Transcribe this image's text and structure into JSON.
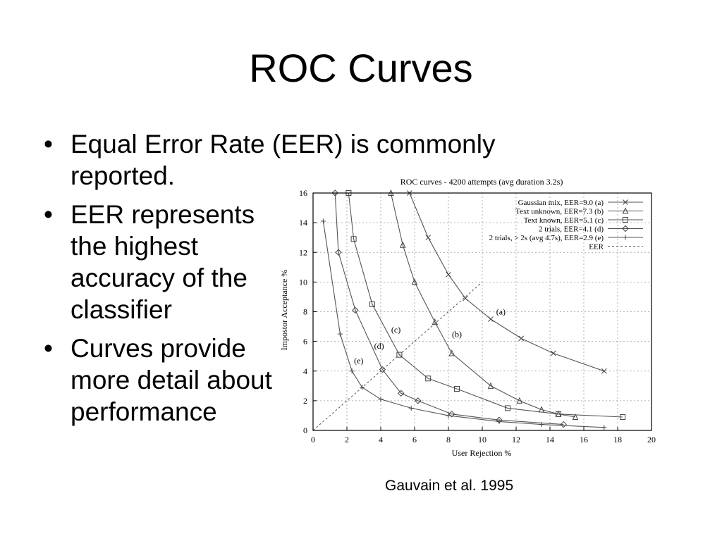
{
  "slide": {
    "title": "ROC Curves",
    "bullets": [
      "Equal Error Rate (EER) is commonly reported.",
      "EER represents the highest accuracy of the classifier",
      "Curves provide more detail about performance"
    ],
    "caption": "Gauvain et al. 1995"
  },
  "chart_data": {
    "type": "line",
    "title": "ROC curves - 4200 attempts (avg duration 3.2s)",
    "xlabel": "User Rejection %",
    "ylabel": "Impostor Acceptance %",
    "xlim": [
      0,
      20
    ],
    "ylim": [
      0,
      16
    ],
    "xticks": [
      "0",
      "2",
      "4",
      "6",
      "8",
      "10",
      "12",
      "14",
      "16",
      "18",
      "20"
    ],
    "yticks": [
      "0",
      "2",
      "4",
      "6",
      "8",
      "10",
      "12",
      "14",
      "16"
    ],
    "grid": true,
    "legend_position": "top-right",
    "series": [
      {
        "name": "Gaussian mix, EER=9.0 (a)",
        "label": "(a)",
        "marker": "x",
        "x": [
          5.7,
          6.8,
          8.0,
          9.0,
          10.5,
          12.3,
          14.2,
          17.2
        ],
        "y": [
          16.0,
          13.0,
          10.5,
          8.9,
          7.5,
          6.2,
          5.2,
          4.0
        ]
      },
      {
        "name": "Text unknown, EER=7.3 (b)",
        "label": "(b)",
        "marker": "triangle",
        "x": [
          4.6,
          5.3,
          6.0,
          7.2,
          8.2,
          10.5,
          12.2,
          13.5,
          14.5,
          15.5
        ],
        "y": [
          16.0,
          12.5,
          10.0,
          7.3,
          5.2,
          3.0,
          2.0,
          1.4,
          1.1,
          0.9
        ]
      },
      {
        "name": "Text known, EER=5.1 (c)",
        "label": "(c)",
        "marker": "square",
        "x": [
          2.1,
          2.4,
          3.5,
          5.1,
          6.8,
          8.5,
          11.5,
          14.5,
          18.3
        ],
        "y": [
          16.0,
          12.9,
          8.5,
          5.1,
          3.5,
          2.8,
          1.5,
          1.1,
          0.9
        ]
      },
      {
        "name": "2 trials, EER=4.1 (d)",
        "label": "(d)",
        "marker": "diamond",
        "x": [
          1.3,
          1.5,
          2.5,
          4.1,
          5.2,
          6.2,
          8.2,
          11.0,
          14.8
        ],
        "y": [
          16.0,
          12.0,
          8.1,
          4.1,
          2.5,
          2.0,
          1.1,
          0.7,
          0.4
        ]
      },
      {
        "name": "2 trials, > 2s (avg 4.7s), EER=2.9 (e)",
        "label": "(e)",
        "marker": "plus",
        "x": [
          0.6,
          1.6,
          2.3,
          2.9,
          4.0,
          5.8,
          8.0,
          11.0,
          13.5,
          17.2
        ],
        "y": [
          14.1,
          6.5,
          4.0,
          2.9,
          2.1,
          1.5,
          1.0,
          0.6,
          0.4,
          0.2
        ]
      },
      {
        "name": "EER",
        "label": "",
        "marker": "none",
        "dashed": true,
        "x": [
          0,
          10
        ],
        "y": [
          0,
          10
        ]
      }
    ],
    "curve_labels": [
      {
        "text": "(a)",
        "x": 11.1,
        "y": 7.8
      },
      {
        "text": "(b)",
        "x": 8.5,
        "y": 6.3
      },
      {
        "text": "(c)",
        "x": 4.9,
        "y": 6.6
      },
      {
        "text": "(d)",
        "x": 3.9,
        "y": 5.5
      },
      {
        "text": "(e)",
        "x": 2.7,
        "y": 4.5
      }
    ]
  }
}
